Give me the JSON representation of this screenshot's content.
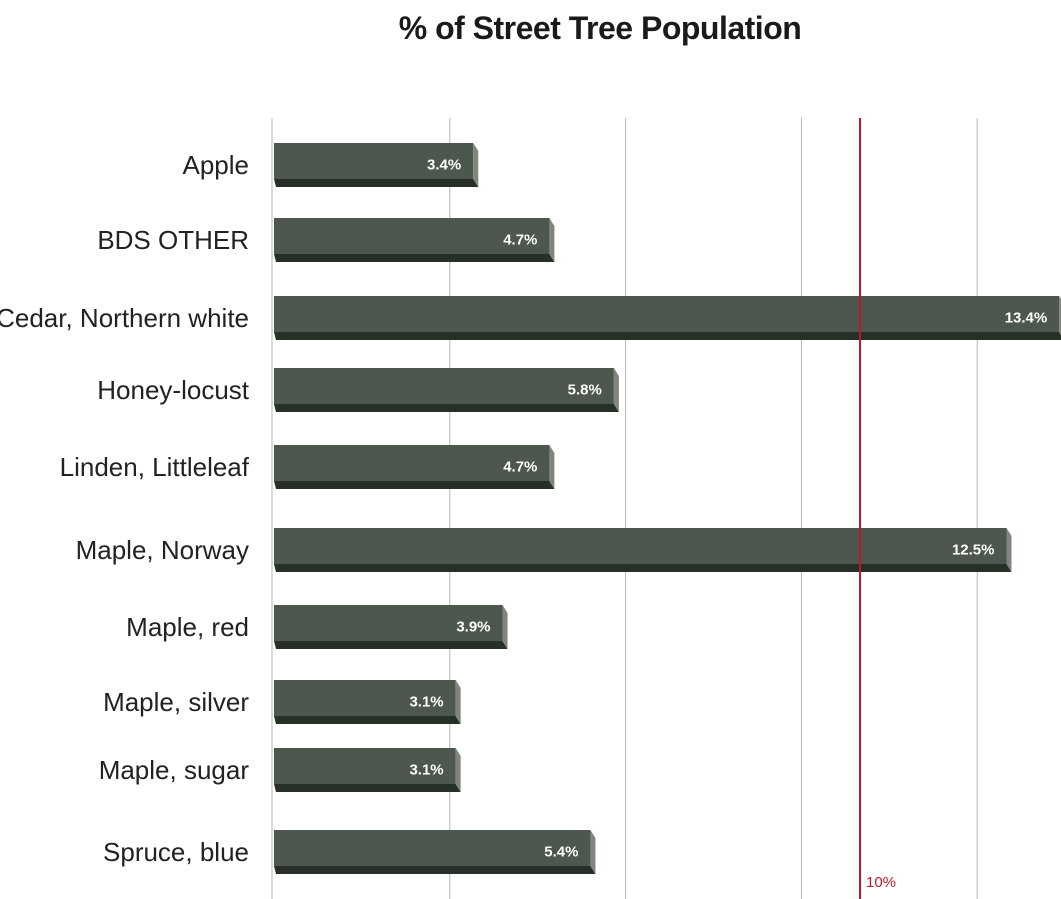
{
  "chart_data": {
    "type": "bar",
    "orientation": "horizontal",
    "title": "% of Street Tree Population",
    "categories": [
      "Apple",
      "BDS OTHER",
      "Cedar, Northern white",
      "Honey-locust",
      "Linden, Littleleaf",
      "Maple, Norway",
      "Maple, red",
      "Maple, silver",
      "Maple, sugar",
      "Spruce, blue"
    ],
    "values": [
      3.4,
      4.7,
      13.4,
      5.8,
      4.7,
      12.5,
      3.9,
      3.1,
      3.1,
      5.4
    ],
    "value_labels": [
      "3.4%",
      "4.7%",
      "13.4%",
      "5.8%",
      "4.7%",
      "12.5%",
      "3.9%",
      "3.1%",
      "3.1%",
      "5.4%"
    ],
    "xlim": [
      0,
      15
    ],
    "grid": true,
    "reference_line": {
      "value": 10,
      "label": "10%",
      "color": "#c0182a"
    },
    "colors": {
      "bar": "#4e574d",
      "bar_dark": "#263026",
      "bar_edge": "#7f877d",
      "grid": "#b5b5b5"
    }
  }
}
